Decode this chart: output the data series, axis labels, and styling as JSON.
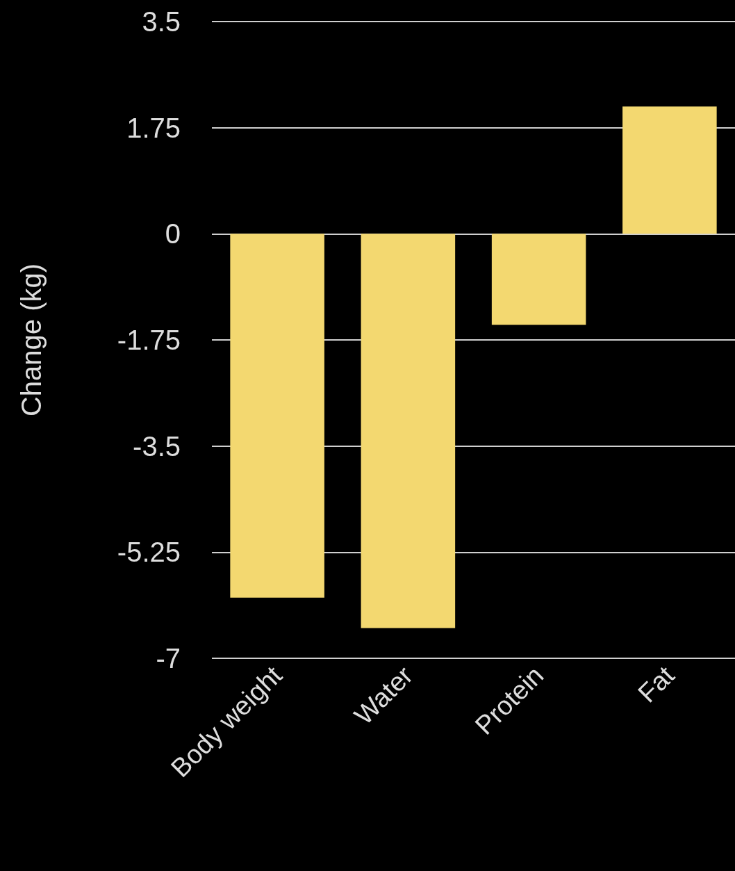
{
  "chart_data": {
    "type": "bar",
    "ylabel": "Change (kg)",
    "categories": [
      "Body weight",
      "Water",
      "Protein",
      "Fat"
    ],
    "values": [
      -6.0,
      -6.5,
      -1.5,
      2.1
    ],
    "color": "#f3d870",
    "ylim": [
      -7,
      3.5
    ],
    "yticks": [
      -7,
      -5.25,
      -3.5,
      -1.75,
      0,
      1.75,
      3.5
    ],
    "grid": "y"
  }
}
